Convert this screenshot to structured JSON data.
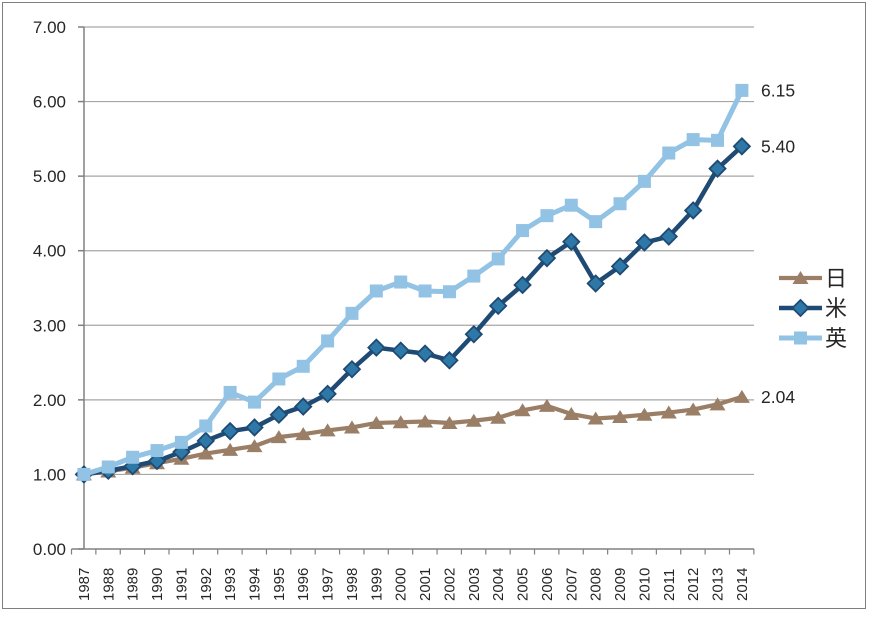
{
  "chart_data": {
    "type": "line",
    "title": "",
    "xlabel": "",
    "ylabel": "",
    "x": [
      1987,
      1988,
      1989,
      1990,
      1991,
      1992,
      1993,
      1994,
      1995,
      1996,
      1997,
      1998,
      1999,
      2000,
      2001,
      2002,
      2003,
      2004,
      2005,
      2006,
      2007,
      2008,
      2009,
      2010,
      2011,
      2012,
      2013,
      2014
    ],
    "x_tick_labels": [
      "1987",
      "1988",
      "1989",
      "1990",
      "1991",
      "1992",
      "1993",
      "1994",
      "1995",
      "1996",
      "1997",
      "1998",
      "1999",
      "2000",
      "2001",
      "2002",
      "2003",
      "2004",
      "2005",
      "2006",
      "2007",
      "2008",
      "2009",
      "2010",
      "2011",
      "2012",
      "2013",
      "2014"
    ],
    "ylim": [
      0,
      7
    ],
    "y_tick_step": 1,
    "y_tick_labels": [
      "0.00",
      "1.00",
      "2.00",
      "3.00",
      "4.00",
      "5.00",
      "6.00",
      "7.00"
    ],
    "grid": true,
    "legend_position": "right",
    "series": [
      {
        "key": "jp",
        "name": "日",
        "marker": "triangle",
        "color": "#9A7E66",
        "marker_fill": "#9A7E66",
        "values": [
          1.0,
          1.04,
          1.09,
          1.15,
          1.21,
          1.28,
          1.33,
          1.38,
          1.5,
          1.54,
          1.59,
          1.63,
          1.69,
          1.7,
          1.71,
          1.69,
          1.72,
          1.76,
          1.86,
          1.92,
          1.81,
          1.75,
          1.77,
          1.8,
          1.83,
          1.87,
          1.94,
          2.04
        ]
      },
      {
        "key": "us",
        "name": "米",
        "marker": "diamond",
        "color": "#1E4A73",
        "marker_fill": "#2E78A8",
        "values": [
          1.0,
          1.05,
          1.11,
          1.18,
          1.3,
          1.45,
          1.58,
          1.63,
          1.8,
          1.91,
          2.08,
          2.41,
          2.7,
          2.66,
          2.62,
          2.53,
          2.88,
          3.26,
          3.54,
          3.9,
          4.12,
          3.56,
          3.79,
          4.11,
          4.19,
          4.54,
          5.1,
          5.4
        ]
      },
      {
        "key": "uk",
        "name": "英",
        "marker": "square",
        "color": "#92C2E4",
        "marker_fill": "#92C2E4",
        "values": [
          1.0,
          1.1,
          1.23,
          1.32,
          1.43,
          1.65,
          2.1,
          1.97,
          2.28,
          2.45,
          2.79,
          3.16,
          3.46,
          3.58,
          3.46,
          3.45,
          3.66,
          3.89,
          4.27,
          4.47,
          4.61,
          4.39,
          4.63,
          4.93,
          5.31,
          5.49,
          5.48,
          6.15
        ]
      }
    ],
    "end_labels": [
      {
        "series": "uk",
        "text": "6.15"
      },
      {
        "series": "us",
        "text": "5.40"
      },
      {
        "series": "jp",
        "text": "2.04"
      }
    ]
  },
  "colors": {
    "grid": "#A6A6A6",
    "axis": "#808080",
    "text": "#262626",
    "background": "#FFFFFF",
    "border": "#7F7F7F"
  }
}
